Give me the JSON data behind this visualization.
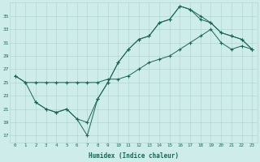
{
  "xlabel": "Humidex (Indice chaleur)",
  "bg_color": "#ceecea",
  "grid_color": "#b0d8d4",
  "line_color": "#1a6655",
  "xlim": [
    -0.5,
    23.5
  ],
  "ylim": [
    16,
    37
  ],
  "xticks": [
    0,
    1,
    2,
    3,
    4,
    5,
    6,
    7,
    8,
    9,
    10,
    11,
    12,
    13,
    14,
    15,
    16,
    17,
    18,
    19,
    20,
    21,
    22,
    23
  ],
  "yticks": [
    17,
    19,
    21,
    23,
    25,
    27,
    29,
    31,
    33,
    35
  ],
  "line1_x": [
    0,
    1,
    2,
    3,
    4,
    5,
    6,
    7,
    8,
    9,
    10,
    11,
    12,
    13,
    14,
    15,
    16,
    17,
    18,
    19,
    20,
    21,
    22,
    23
  ],
  "line1_y": [
    26.0,
    25.0,
    25.0,
    25.0,
    25.0,
    25.0,
    25.0,
    25.0,
    25.0,
    25.5,
    25.5,
    26.0,
    27.0,
    28.0,
    28.5,
    29.0,
    30.0,
    31.0,
    32.0,
    33.0,
    31.0,
    30.0,
    30.5,
    30.0
  ],
  "line2_x": [
    2,
    3,
    4,
    5,
    6,
    7,
    8,
    9,
    10,
    11,
    12,
    13,
    14,
    15,
    16,
    17,
    18,
    19,
    20,
    21,
    22,
    23
  ],
  "line2_y": [
    22.0,
    21.0,
    20.5,
    21.0,
    19.5,
    19.0,
    22.5,
    25.0,
    28.0,
    30.0,
    31.5,
    32.0,
    34.0,
    34.5,
    36.5,
    36.0,
    34.5,
    34.0,
    32.5,
    32.0,
    31.5,
    30.0
  ],
  "line3_x": [
    0,
    1,
    2,
    3,
    4,
    5,
    6,
    7,
    8,
    9,
    10,
    11,
    12,
    13,
    14,
    15,
    16,
    17,
    18,
    19,
    20,
    21,
    22,
    23
  ],
  "line3_y": [
    26.0,
    25.0,
    22.0,
    21.0,
    20.5,
    21.0,
    19.5,
    17.0,
    22.5,
    25.0,
    28.0,
    30.0,
    31.5,
    32.0,
    34.0,
    34.5,
    36.5,
    36.0,
    35.0,
    34.0,
    32.5,
    32.0,
    31.5,
    30.0
  ]
}
